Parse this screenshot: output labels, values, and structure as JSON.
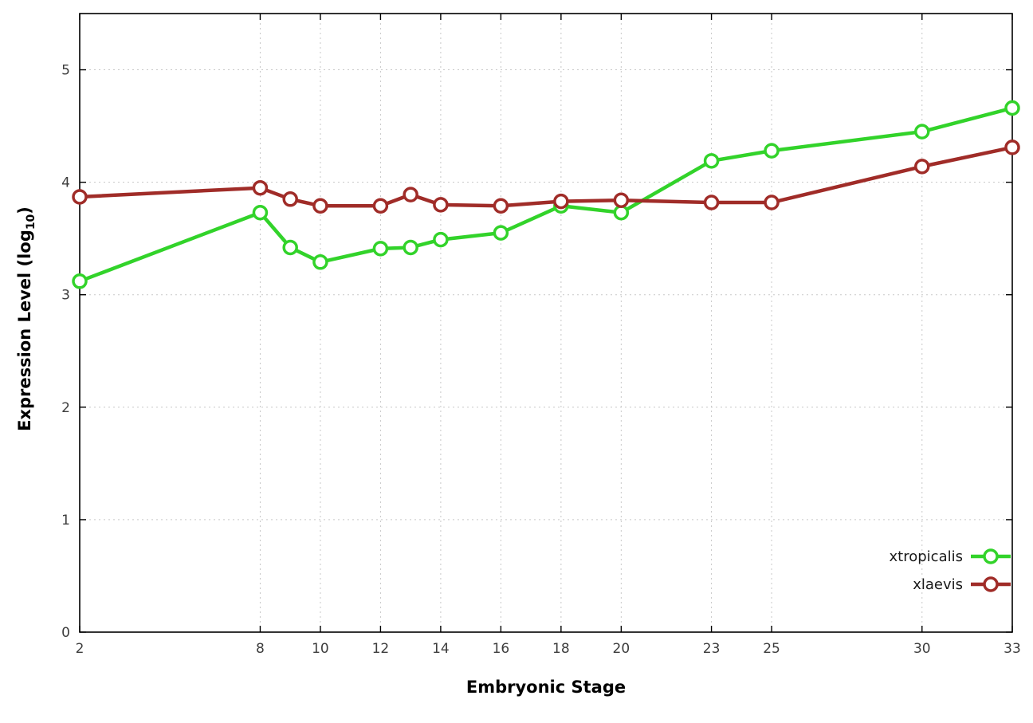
{
  "figure": {
    "background": "#ffffff",
    "xlabel": "Embryonic Stage",
    "ylabel_prefix": "Expression Level (log",
    "ylabel_sub": "10",
    "ylabel_suffix": ")"
  },
  "chart_data": {
    "type": "line",
    "title": "",
    "xlabel": "Embryonic Stage",
    "ylabel": "Expression Level (log10)",
    "x": [
      2,
      8,
      9,
      10,
      12,
      13,
      14,
      16,
      18,
      20,
      23,
      25,
      30,
      33
    ],
    "series": [
      {
        "name": "xtropicalis",
        "color": "#32d32a",
        "values": [
          3.12,
          3.73,
          3.42,
          3.29,
          3.41,
          3.42,
          3.49,
          3.55,
          3.79,
          3.73,
          4.19,
          4.28,
          4.45,
          4.66
        ]
      },
      {
        "name": "xlaevis",
        "color": "#a02c28",
        "values": [
          3.87,
          3.95,
          3.85,
          3.79,
          3.79,
          3.89,
          3.8,
          3.79,
          3.83,
          3.84,
          3.82,
          3.82,
          4.14,
          4.31
        ]
      }
    ],
    "xticks": [
      2,
      8,
      10,
      12,
      14,
      16,
      18,
      20,
      23,
      25,
      30,
      33
    ],
    "yticks": [
      0,
      1,
      2,
      3,
      4,
      5
    ],
    "xlim": [
      2,
      33
    ],
    "ylim": [
      0,
      5.5
    ],
    "grid": true,
    "marker": "open-circle",
    "legend_position": "bottom-right"
  }
}
